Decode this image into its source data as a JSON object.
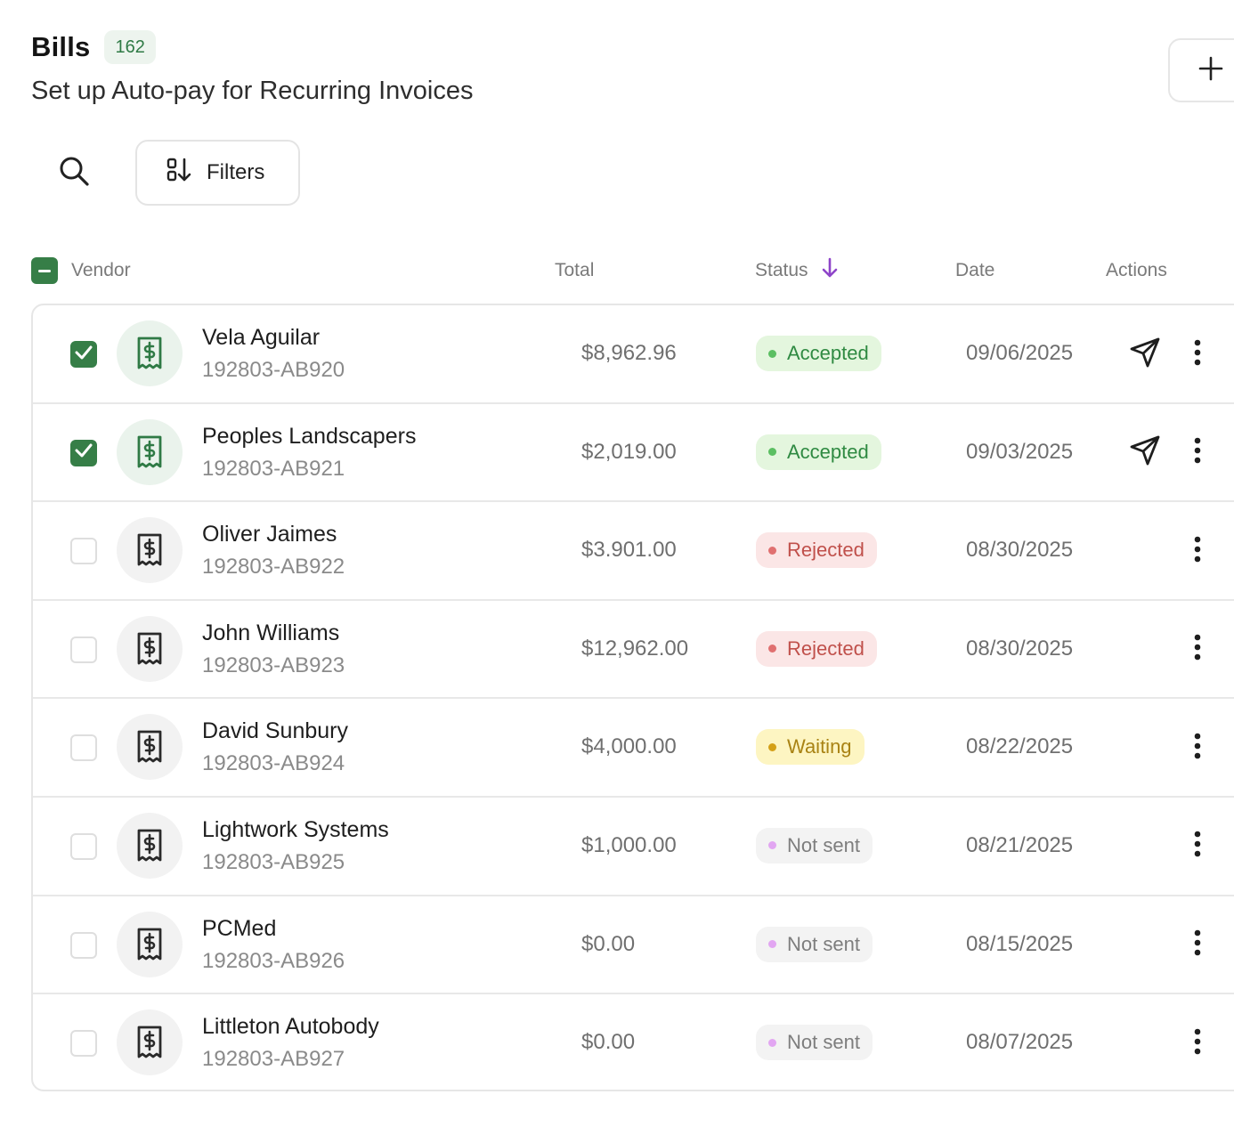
{
  "header": {
    "title": "Bills",
    "count": "162",
    "subtitle": "Set up Auto-pay for Recurring Invoices",
    "add_icon": "plus-icon"
  },
  "toolbar": {
    "search_icon": "search-icon",
    "filters_label": "Filters",
    "filters_icon": "sort-filter-icon"
  },
  "columns": {
    "vendor": "Vendor",
    "total": "Total",
    "status": "Status",
    "date": "Date",
    "actions": "Actions"
  },
  "colors": {
    "brand_green": "#367e47",
    "sort_arrow": "#8e44c9",
    "accepted": "#2f8a42",
    "rejected": "#c0504b",
    "waiting": "#a98314",
    "not_sent": "#7d7d7d"
  },
  "rows": [
    {
      "checked": true,
      "vendor": "Vela Aguilar",
      "id": "192803-AB920",
      "total": "$8,962.96",
      "status": "Accepted",
      "status_kind": "accepted",
      "date": "09/06/2025",
      "send": true
    },
    {
      "checked": true,
      "vendor": "Peoples Landscapers",
      "id": "192803-AB921",
      "total": "$2,019.00",
      "status": "Accepted",
      "status_kind": "accepted",
      "date": "09/03/2025",
      "send": true
    },
    {
      "checked": false,
      "vendor": "Oliver Jaimes",
      "id": "192803-AB922",
      "total": "$3.901.00",
      "status": "Rejected",
      "status_kind": "rejected",
      "date": "08/30/2025",
      "send": false
    },
    {
      "checked": false,
      "vendor": "John Williams",
      "id": "192803-AB923",
      "total": "$12,962.00",
      "status": "Rejected",
      "status_kind": "rejected",
      "date": "08/30/2025",
      "send": false
    },
    {
      "checked": false,
      "vendor": "David Sunbury",
      "id": "192803-AB924",
      "total": "$4,000.00",
      "status": "Waiting",
      "status_kind": "waiting",
      "date": "08/22/2025",
      "send": false
    },
    {
      "checked": false,
      "vendor": "Lightwork Systems",
      "id": "192803-AB925",
      "total": "$1,000.00",
      "status": "Not sent",
      "status_kind": "notsent",
      "date": "08/21/2025",
      "send": false
    },
    {
      "checked": false,
      "vendor": "PCMed",
      "id": "192803-AB926",
      "total": "$0.00",
      "status": "Not sent",
      "status_kind": "notsent",
      "date": "08/15/2025",
      "send": false
    },
    {
      "checked": false,
      "vendor": "Littleton Autobody",
      "id": "192803-AB927",
      "total": "$0.00",
      "status": "Not sent",
      "status_kind": "notsent",
      "date": "08/07/2025",
      "send": false
    }
  ]
}
